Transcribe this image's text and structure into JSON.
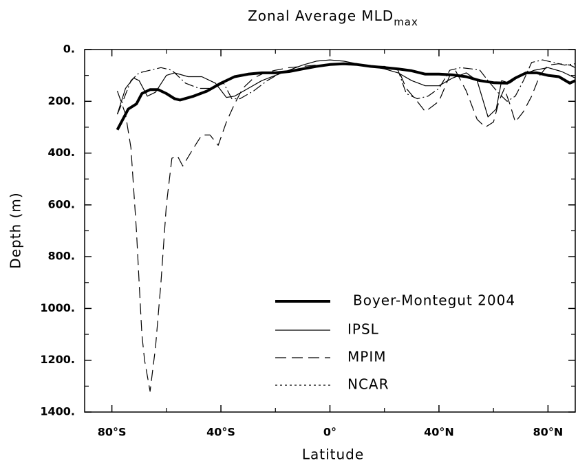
{
  "chart_data": {
    "type": "line",
    "title": "Zonal Average MLD",
    "title_subscript": "max",
    "x_label": "Latitude",
    "y_label": "Depth (m)",
    "xlim": [
      -90,
      90
    ],
    "ylim": [
      0,
      1400
    ],
    "y_inverted": true,
    "xticks": [
      {
        "value": -80,
        "label": "80°S"
      },
      {
        "value": -40,
        "label": "40°S"
      },
      {
        "value": 0,
        "label": "0°"
      },
      {
        "value": 40,
        "label": "40°N"
      },
      {
        "value": 80,
        "label": "80°N"
      }
    ],
    "xticks_minor": [
      -60,
      -20,
      20,
      60
    ],
    "yticks": [
      {
        "value": 0,
        "label": "0."
      },
      {
        "value": 200,
        "label": "200."
      },
      {
        "value": 400,
        "label": "400."
      },
      {
        "value": 600,
        "label": "600."
      },
      {
        "value": 800,
        "label": "800."
      },
      {
        "value": 1000,
        "label": "1000."
      },
      {
        "value": 1200,
        "label": "1200."
      },
      {
        "value": 1400,
        "label": "1400."
      }
    ],
    "yticks_minor": [
      100,
      300,
      500,
      700,
      900,
      1100,
      1300
    ],
    "series": [
      {
        "name": "Boyer-Montegut 2004",
        "color": "#000000",
        "width": 4,
        "dash": "none",
        "x": [
          -78,
          -76,
          -74,
          -71,
          -69,
          -66,
          -63,
          -60,
          -57,
          -55,
          -50,
          -45,
          -40,
          -35,
          -30,
          -25,
          -20,
          -15,
          -10,
          -5,
          0,
          5,
          10,
          15,
          20,
          25,
          30,
          35,
          40,
          45,
          50,
          55,
          60,
          65,
          68,
          72,
          76,
          80,
          84,
          88,
          90
        ],
        "values": [
          310,
          270,
          230,
          210,
          170,
          155,
          155,
          170,
          190,
          195,
          180,
          160,
          130,
          105,
          95,
          90,
          90,
          85,
          75,
          65,
          58,
          55,
          58,
          65,
          70,
          75,
          82,
          95,
          95,
          98,
          105,
          120,
          128,
          130,
          110,
          90,
          90,
          100,
          105,
          130,
          120
        ]
      },
      {
        "name": "IPSL",
        "color": "#000000",
        "width": 1.2,
        "dash": "none",
        "x": [
          -78,
          -75,
          -72,
          -70,
          -67,
          -64,
          -60,
          -57,
          -52,
          -47,
          -42,
          -38,
          -35,
          -30,
          -25,
          -20,
          -15,
          -10,
          -5,
          0,
          5,
          10,
          15,
          20,
          25,
          30,
          35,
          40,
          45,
          50,
          54,
          58,
          61,
          63,
          66,
          70,
          75,
          80,
          85,
          90
        ],
        "values": [
          250,
          150,
          110,
          120,
          180,
          165,
          100,
          90,
          105,
          105,
          130,
          185,
          180,
          150,
          120,
          100,
          80,
          60,
          45,
          40,
          45,
          55,
          65,
          75,
          90,
          120,
          140,
          140,
          110,
          90,
          120,
          260,
          230,
          120,
          130,
          100,
          80,
          70,
          85,
          110
        ]
      },
      {
        "name": "MPIM",
        "color": "#000000",
        "width": 1.2,
        "dash": "16 8",
        "x": [
          -78,
          -75,
          -73,
          -71,
          -70,
          -69,
          -68,
          -66,
          -64,
          -62,
          -60,
          -58,
          -56,
          -54,
          -50,
          -47,
          -44,
          -41,
          -38,
          -35,
          -32,
          -28,
          -24,
          -20,
          -15,
          -10,
          -5,
          0,
          5,
          10,
          15,
          20,
          25,
          28,
          32,
          35,
          40,
          44,
          46,
          50,
          54,
          57,
          60,
          62,
          64,
          66,
          68,
          71,
          74,
          77,
          80,
          84,
          88,
          90
        ],
        "values": [
          160,
          250,
          380,
          700,
          900,
          1100,
          1200,
          1320,
          1150,
          900,
          600,
          420,
          410,
          450,
          380,
          330,
          330,
          370,
          280,
          210,
          150,
          110,
          90,
          80,
          70,
          65,
          60,
          58,
          55,
          60,
          65,
          70,
          75,
          150,
          200,
          240,
          200,
          100,
          80,
          160,
          270,
          300,
          280,
          200,
          150,
          210,
          280,
          240,
          180,
          100,
          60,
          55,
          60,
          70
        ]
      },
      {
        "name": "NCAR",
        "color": "#000000",
        "width": 1.2,
        "dash": "14 4 2 4",
        "x": [
          -78,
          -76,
          -73,
          -70,
          -66,
          -62,
          -58,
          -53,
          -48,
          -43,
          -39,
          -36,
          -33,
          -28,
          -23,
          -18,
          -12,
          -6,
          0,
          5,
          10,
          15,
          20,
          25,
          28,
          32,
          36,
          40,
          44,
          48,
          52,
          55,
          58,
          62,
          65,
          68,
          71,
          74,
          78,
          82,
          86,
          90
        ],
        "values": [
          250,
          200,
          120,
          90,
          80,
          70,
          80,
          130,
          150,
          150,
          130,
          190,
          190,
          160,
          120,
          90,
          75,
          65,
          60,
          55,
          60,
          65,
          65,
          80,
          170,
          190,
          180,
          150,
          80,
          70,
          75,
          80,
          120,
          170,
          200,
          180,
          120,
          50,
          40,
          50,
          60,
          55
        ]
      }
    ]
  }
}
